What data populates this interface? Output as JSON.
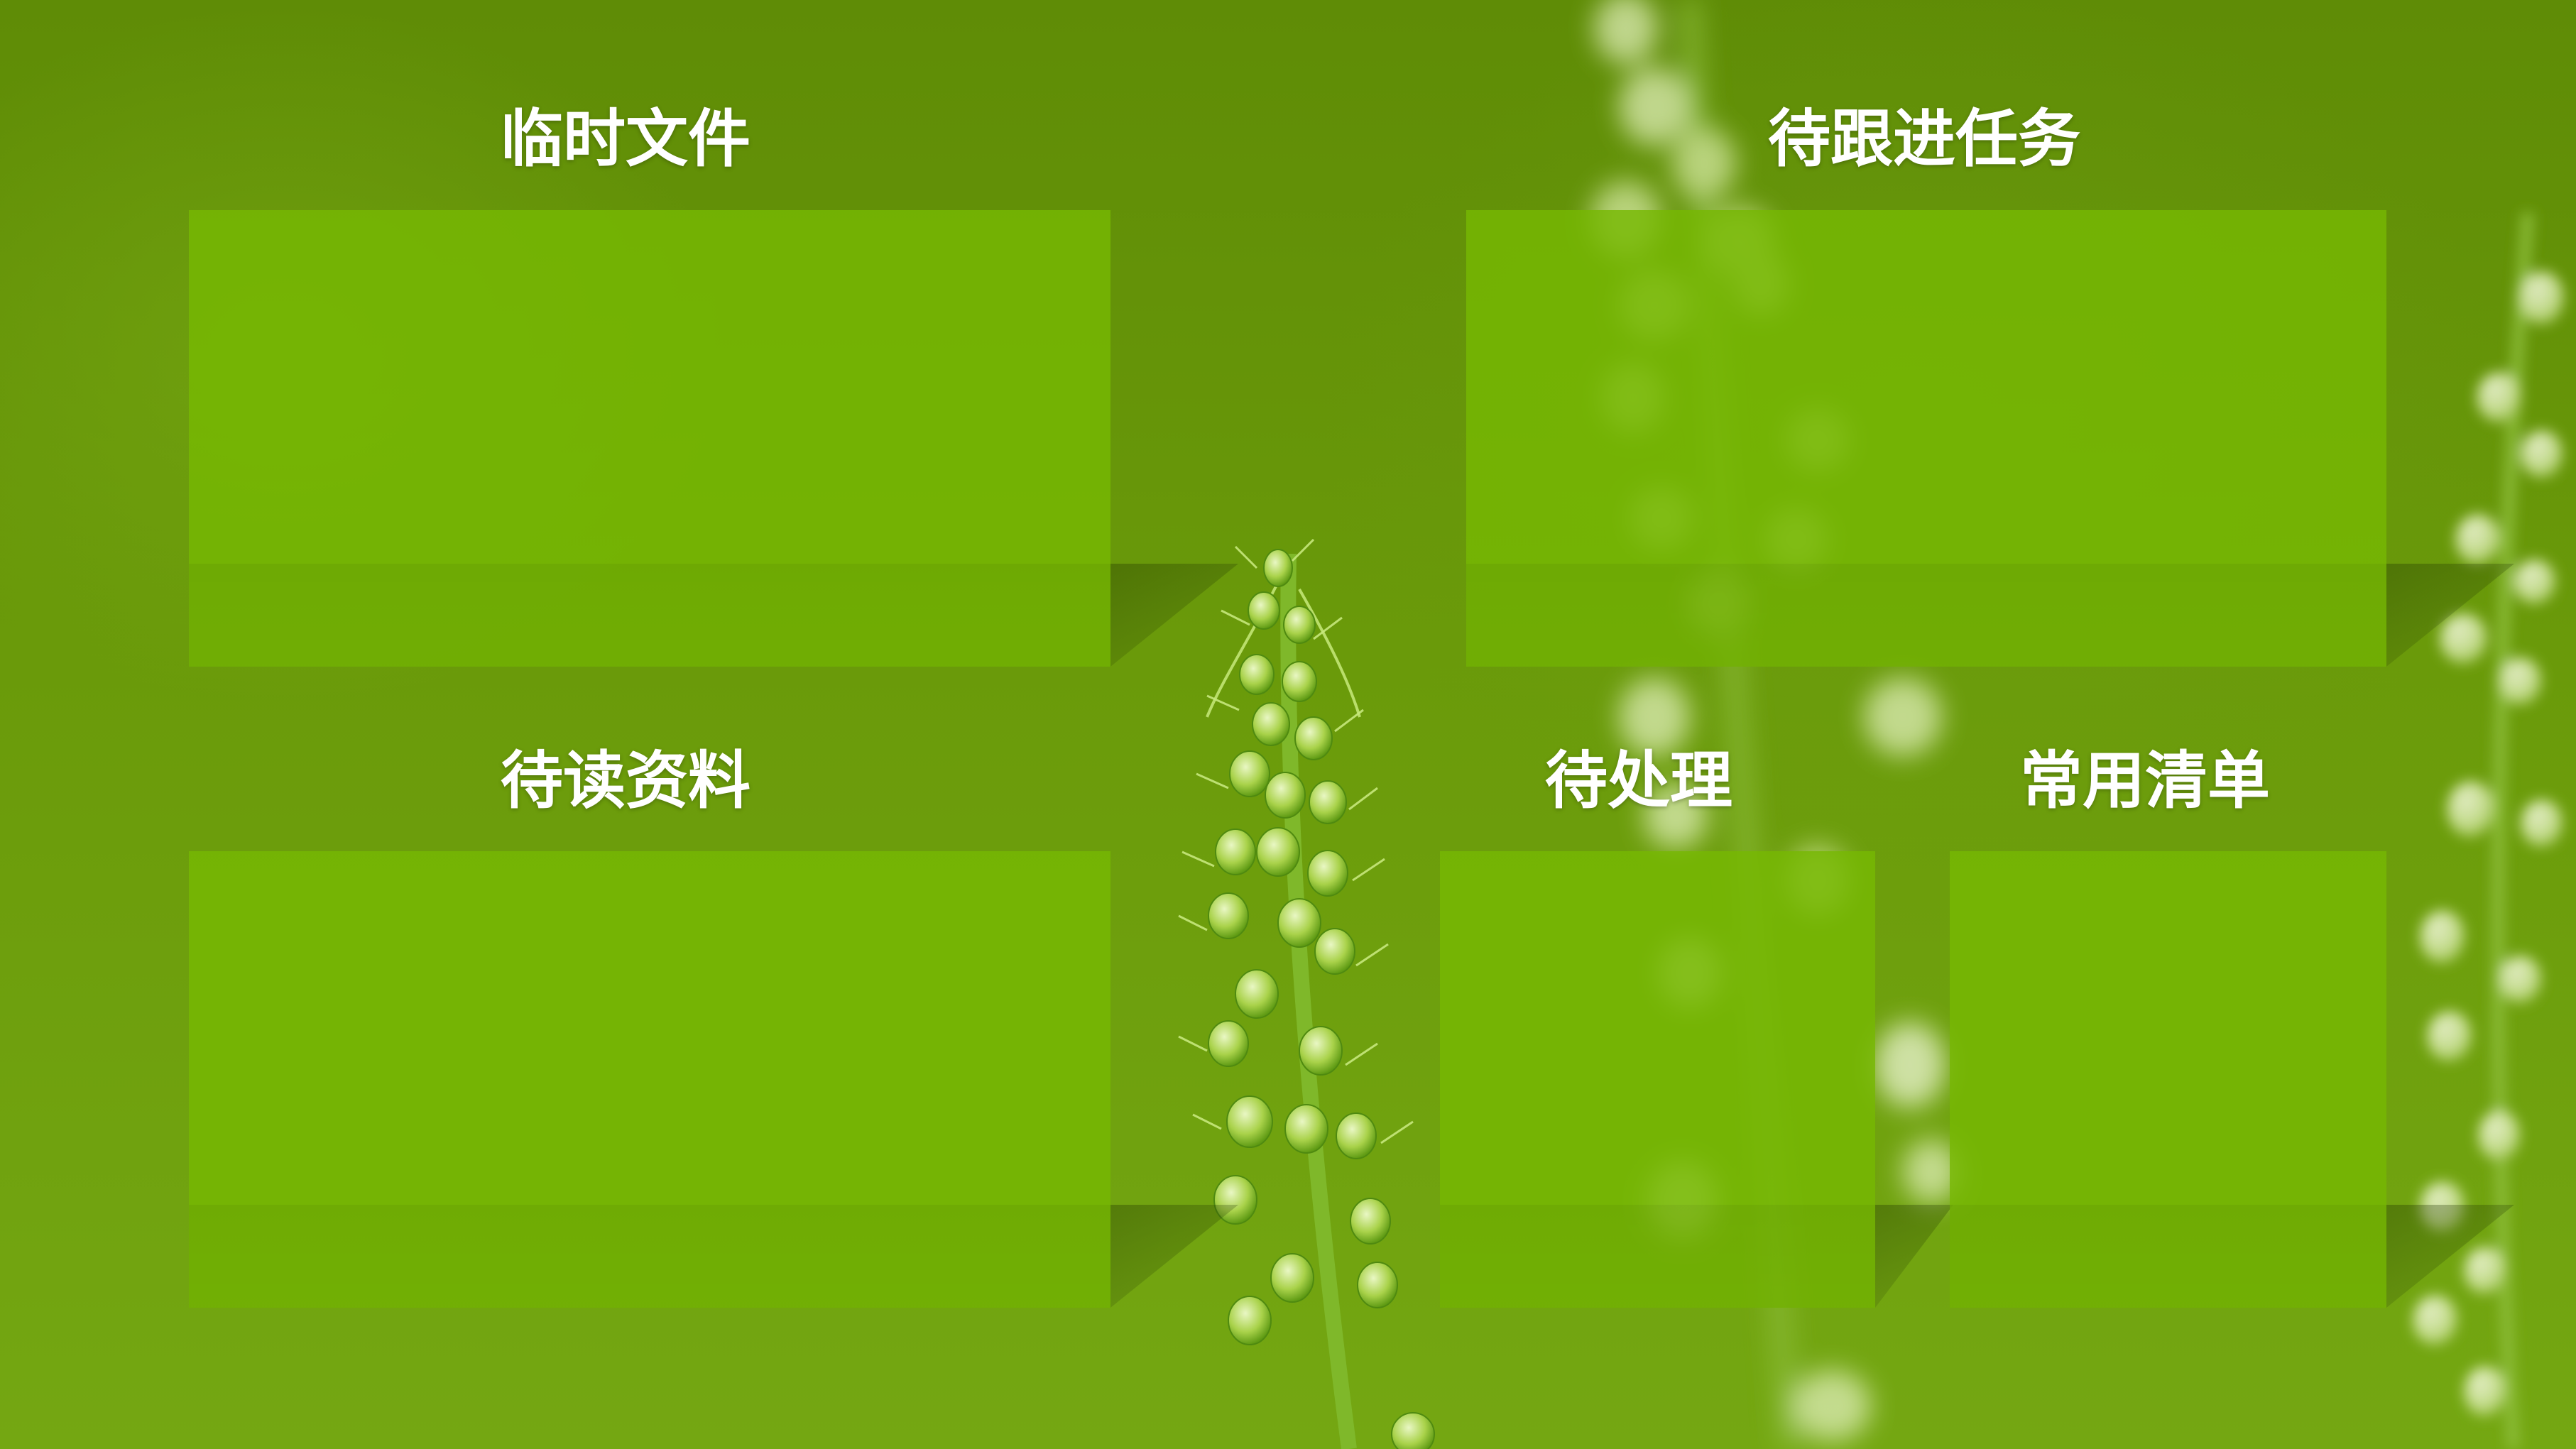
{
  "desktop": {
    "zones": [
      {
        "id": "temp-files",
        "title": "临时文件"
      },
      {
        "id": "follow-up-tasks",
        "title": "待跟进任务"
      },
      {
        "id": "reading-materials",
        "title": "待读资料"
      },
      {
        "id": "pending",
        "title": "待处理"
      },
      {
        "id": "common-lists",
        "title": "常用清单"
      }
    ]
  },
  "colors": {
    "background": "#6a9a0a",
    "zone_fill": "#76b802",
    "title_text": "#ffffff"
  }
}
